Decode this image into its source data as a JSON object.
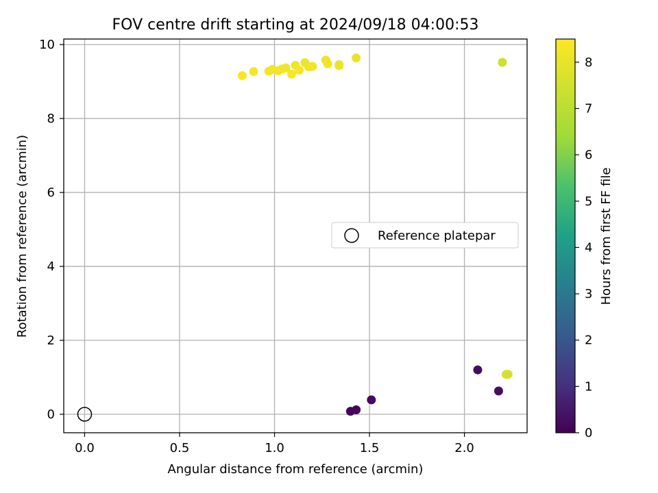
{
  "chart_data": {
    "type": "scatter",
    "title": "FOV centre drift starting at 2024/09/18 04:00:53",
    "xlabel": "Angular distance from reference (arcmin)",
    "ylabel": "Rotation from reference (arcmin)",
    "xlim": [
      -0.11,
      2.33
    ],
    "ylim": [
      -0.5,
      10.15
    ],
    "xticks": [
      0.0,
      0.5,
      1.0,
      1.5,
      2.0
    ],
    "xtick_labels": [
      "0.0",
      "0.5",
      "1.0",
      "1.5",
      "2.0"
    ],
    "yticks": [
      0,
      2,
      4,
      6,
      8,
      10
    ],
    "ytick_labels": [
      "0",
      "2",
      "4",
      "6",
      "8",
      "10"
    ],
    "grid": true,
    "colormap": "viridis",
    "colorbar": {
      "label": "Hours from first FF file",
      "range": [
        0,
        8.5
      ],
      "ticks": [
        0,
        1,
        2,
        3,
        4,
        5,
        6,
        7,
        8
      ],
      "tick_labels": [
        "0",
        "1",
        "2",
        "3",
        "4",
        "5",
        "6",
        "7",
        "8"
      ]
    },
    "reference": {
      "x": 0.0,
      "y": 0.0,
      "legend_label": "Reference platepar"
    },
    "legend_position": "center-right",
    "points": [
      {
        "x": 1.4,
        "y": 0.08,
        "c": 0.1
      },
      {
        "x": 1.43,
        "y": 0.12,
        "c": 0.15
      },
      {
        "x": 1.51,
        "y": 0.39,
        "c": 0.2
      },
      {
        "x": 2.07,
        "y": 1.2,
        "c": 0.25
      },
      {
        "x": 2.18,
        "y": 0.63,
        "c": 0.3
      },
      {
        "x": 2.22,
        "y": 1.08,
        "c": 7.6
      },
      {
        "x": 2.23,
        "y": 1.08,
        "c": 7.6
      },
      {
        "x": 2.2,
        "y": 9.52,
        "c": 7.4
      },
      {
        "x": 0.83,
        "y": 9.16,
        "c": 8.4
      },
      {
        "x": 0.89,
        "y": 9.27,
        "c": 8.35
      },
      {
        "x": 0.97,
        "y": 9.28,
        "c": 8.3
      },
      {
        "x": 0.99,
        "y": 9.33,
        "c": 8.3
      },
      {
        "x": 1.02,
        "y": 9.29,
        "c": 8.25
      },
      {
        "x": 1.04,
        "y": 9.34,
        "c": 8.25
      },
      {
        "x": 1.06,
        "y": 9.37,
        "c": 8.2
      },
      {
        "x": 1.09,
        "y": 9.2,
        "c": 8.4
      },
      {
        "x": 1.11,
        "y": 9.44,
        "c": 8.2
      },
      {
        "x": 1.13,
        "y": 9.31,
        "c": 8.3
      },
      {
        "x": 1.16,
        "y": 9.51,
        "c": 8.15
      },
      {
        "x": 1.18,
        "y": 9.4,
        "c": 8.2
      },
      {
        "x": 1.2,
        "y": 9.41,
        "c": 8.2
      },
      {
        "x": 1.27,
        "y": 9.58,
        "c": 8.1
      },
      {
        "x": 1.28,
        "y": 9.48,
        "c": 8.15
      },
      {
        "x": 1.34,
        "y": 9.43,
        "c": 8.15
      },
      {
        "x": 1.34,
        "y": 9.46,
        "c": 8.1
      },
      {
        "x": 1.43,
        "y": 9.64,
        "c": 8.0
      }
    ]
  }
}
